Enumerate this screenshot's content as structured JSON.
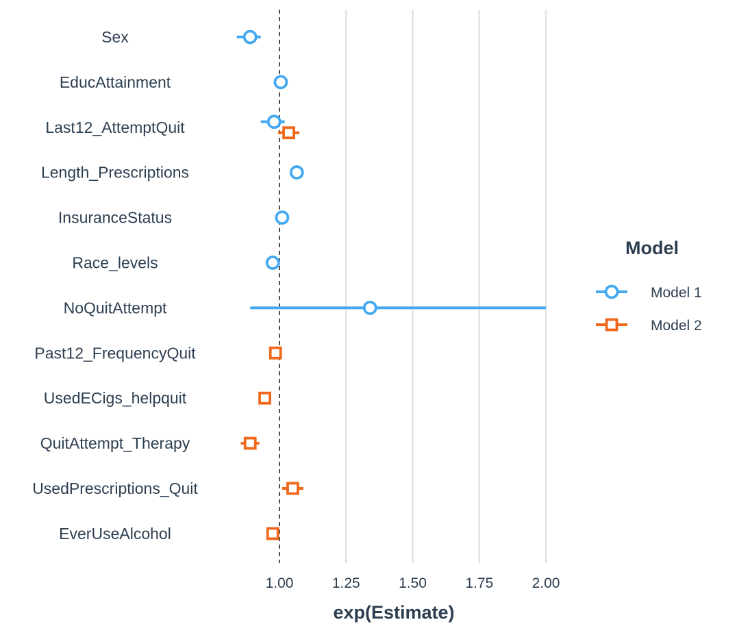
{
  "chart_data": {
    "type": "scatter",
    "subtype": "coefficient-dot-whisker",
    "xlabel": "exp(Estimate)",
    "ylabel": "",
    "xlim": [
      0.75,
      2.05
    ],
    "x_ticks": [
      1.0,
      1.25,
      1.5,
      1.75,
      2.0
    ],
    "x_tick_labels": [
      "1.00",
      "1.25",
      "1.50",
      "1.75",
      "2.00"
    ],
    "reference_line": 1.0,
    "grid": "vertical-major",
    "legend": {
      "title": "Model",
      "position": "right"
    },
    "categories": [
      "Sex",
      "EducAttainment",
      "Last12_AttemptQuit",
      "Length_Prescriptions",
      "InsuranceStatus",
      "Race_levels",
      "NoQuitAttempt",
      "Past12_FrequencyQuit",
      "UsedECigs_helpquit",
      "QuitAttempt_Therapy",
      "UsedPrescriptions_Quit",
      "EverUseAlcohol"
    ],
    "series": [
      {
        "name": "Model 1",
        "color": "#45a9f1",
        "marker": "circle",
        "points": [
          {
            "term": "Sex",
            "estimate": 0.89,
            "low": 0.84,
            "high": 0.93
          },
          {
            "term": "EducAttainment",
            "estimate": 1.005,
            "low": 0.995,
            "high": 1.015
          },
          {
            "term": "Last12_AttemptQuit",
            "estimate": 0.98,
            "low": 0.93,
            "high": 1.02
          },
          {
            "term": "Length_Prescriptions",
            "estimate": 1.065,
            "low": 1.055,
            "high": 1.075
          },
          {
            "term": "InsuranceStatus",
            "estimate": 1.01,
            "low": 1.0,
            "high": 1.02
          },
          {
            "term": "Race_levels",
            "estimate": 0.975,
            "low": 0.965,
            "high": 0.985
          },
          {
            "term": "NoQuitAttempt",
            "estimate": 1.34,
            "low": 0.89,
            "high": 2.0
          }
        ]
      },
      {
        "name": "Model 2",
        "color": "#f0681c",
        "marker": "square",
        "points": [
          {
            "term": "Last12_AttemptQuit",
            "estimate": 1.035,
            "low": 0.995,
            "high": 1.075
          },
          {
            "term": "Past12_FrequencyQuit",
            "estimate": 0.985,
            "low": 0.975,
            "high": 0.995
          },
          {
            "term": "UsedECigs_helpquit",
            "estimate": 0.945,
            "low": 0.935,
            "high": 0.955
          },
          {
            "term": "QuitAttempt_Therapy",
            "estimate": 0.89,
            "low": 0.855,
            "high": 0.925
          },
          {
            "term": "UsedPrescriptions_Quit",
            "estimate": 1.05,
            "low": 1.01,
            "high": 1.09
          },
          {
            "term": "EverUseAlcohol",
            "estimate": 0.975,
            "low": 0.965,
            "high": 0.985
          }
        ]
      }
    ]
  }
}
